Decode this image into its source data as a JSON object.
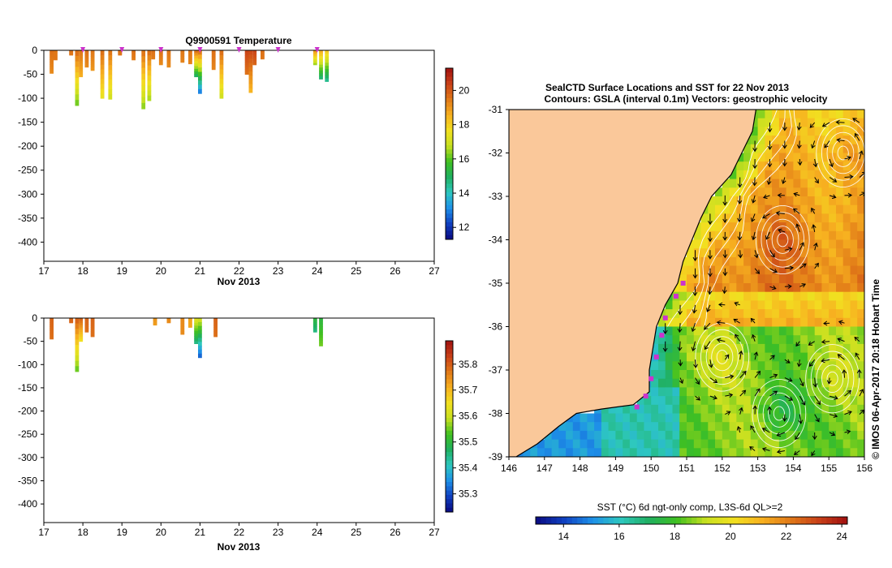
{
  "colors": {
    "land": "#fac89a",
    "vector": "#000000",
    "contour": "#ffffff",
    "station": "#cc33cc",
    "colormap": [
      "#0a0a80",
      "#1040c0",
      "#1e90e8",
      "#2ec8c0",
      "#20b060",
      "#40c020",
      "#c8e020",
      "#f2e020",
      "#f7b020",
      "#e07818",
      "#c84018",
      "#a01010"
    ]
  },
  "chart_data": [
    {
      "type": "heatmap",
      "title": "Q9900591  Temperature",
      "xlabel": "Nov 2013",
      "ylabel": "",
      "xlim": [
        17,
        27
      ],
      "ylim": [
        -440,
        0
      ],
      "xticks": [
        "17",
        "18",
        "19",
        "20",
        "21",
        "22",
        "23",
        "24",
        "25",
        "26",
        "27"
      ],
      "yticks": [
        "0",
        "-50",
        "-100",
        "-150",
        "-200",
        "-250",
        "-300",
        "-350",
        "-400"
      ],
      "colorbar": {
        "ticks": [
          "12",
          "14",
          "16",
          "18",
          "20"
        ],
        "range": [
          11.3,
          21.3
        ]
      },
      "station_markers_x": [
        18,
        19,
        20,
        21,
        22,
        23,
        24
      ],
      "profiles": [
        {
          "x": 17.2,
          "depth": 48,
          "surface": 19.6,
          "bottom": 19.2
        },
        {
          "x": 17.3,
          "depth": 20,
          "surface": 19.5,
          "bottom": 19.5
        },
        {
          "x": 17.7,
          "depth": 10,
          "surface": 19.6,
          "bottom": 19.5
        },
        {
          "x": 17.85,
          "depth": 115,
          "surface": 19.6,
          "bottom": 16.2
        },
        {
          "x": 17.95,
          "depth": 55,
          "surface": 19.5,
          "bottom": 18.6
        },
        {
          "x": 18.1,
          "depth": 35,
          "surface": 19.6,
          "bottom": 19.2
        },
        {
          "x": 18.25,
          "depth": 42,
          "surface": 19.5,
          "bottom": 19.0
        },
        {
          "x": 18.5,
          "depth": 100,
          "surface": 19.6,
          "bottom": 17.5
        },
        {
          "x": 18.7,
          "depth": 102,
          "surface": 19.5,
          "bottom": 17.0
        },
        {
          "x": 18.95,
          "depth": 10,
          "surface": 19.6,
          "bottom": 19.5
        },
        {
          "x": 19.3,
          "depth": 20,
          "surface": 19.6,
          "bottom": 19.4
        },
        {
          "x": 19.55,
          "depth": 122,
          "surface": 19.5,
          "bottom": 16.4
        },
        {
          "x": 19.7,
          "depth": 105,
          "surface": 19.6,
          "bottom": 16.6
        },
        {
          "x": 19.8,
          "depth": 18,
          "surface": 19.6,
          "bottom": 19.4
        },
        {
          "x": 20.0,
          "depth": 30,
          "surface": 19.6,
          "bottom": 19.2
        },
        {
          "x": 20.2,
          "depth": 35,
          "surface": 19.5,
          "bottom": 19.2
        },
        {
          "x": 20.55,
          "depth": 25,
          "surface": 19.5,
          "bottom": 19.3
        },
        {
          "x": 20.75,
          "depth": 28,
          "surface": 19.5,
          "bottom": 19.3
        },
        {
          "x": 20.9,
          "depth": 55,
          "surface": 19.5,
          "bottom": 15.0
        },
        {
          "x": 21.0,
          "depth": 90,
          "surface": 19.4,
          "bottom": 13.0
        },
        {
          "x": 21.35,
          "depth": 40,
          "surface": 19.6,
          "bottom": 19.3
        },
        {
          "x": 21.55,
          "depth": 100,
          "surface": 19.6,
          "bottom": 17.0
        },
        {
          "x": 22.2,
          "depth": 50,
          "surface": 20.3,
          "bottom": 19.6
        },
        {
          "x": 22.3,
          "depth": 88,
          "surface": 20.2,
          "bottom": 18.5
        },
        {
          "x": 22.4,
          "depth": 30,
          "surface": 20.3,
          "bottom": 19.8
        },
        {
          "x": 22.6,
          "depth": 18,
          "surface": 19.6,
          "bottom": 19.5
        },
        {
          "x": 23.95,
          "depth": 30,
          "surface": 19.0,
          "bottom": 16.5
        },
        {
          "x": 24.1,
          "depth": 60,
          "surface": 18.5,
          "bottom": 14.8
        },
        {
          "x": 24.25,
          "depth": 65,
          "surface": 18.0,
          "bottom": 14.5
        }
      ]
    },
    {
      "type": "heatmap",
      "title": "",
      "xlabel": "Nov 2013",
      "ylabel": "",
      "xlim": [
        17,
        27
      ],
      "ylim": [
        -440,
        0
      ],
      "xticks": [
        "17",
        "18",
        "19",
        "20",
        "21",
        "22",
        "23",
        "24",
        "25",
        "26",
        "27"
      ],
      "yticks": [
        "0",
        "-50",
        "-100",
        "-150",
        "-200",
        "-250",
        "-300",
        "-350",
        "-400"
      ],
      "colorbar": {
        "ticks": [
          "35.3",
          "35.4",
          "35.5",
          "35.6",
          "35.7",
          "35.8"
        ],
        "range": [
          35.23,
          35.89
        ]
      },
      "profiles": [
        {
          "x": 17.2,
          "depth": 45,
          "surface": 35.79,
          "bottom": 35.78
        },
        {
          "x": 17.7,
          "depth": 10,
          "surface": 35.79,
          "bottom": 35.79
        },
        {
          "x": 17.85,
          "depth": 115,
          "surface": 35.79,
          "bottom": 35.55
        },
        {
          "x": 17.95,
          "depth": 50,
          "surface": 35.79,
          "bottom": 35.65
        },
        {
          "x": 18.1,
          "depth": 30,
          "surface": 35.79,
          "bottom": 35.78
        },
        {
          "x": 18.25,
          "depth": 40,
          "surface": 35.79,
          "bottom": 35.78
        },
        {
          "x": 19.85,
          "depth": 15,
          "surface": 35.74,
          "bottom": 35.73
        },
        {
          "x": 20.2,
          "depth": 10,
          "surface": 35.75,
          "bottom": 35.75
        },
        {
          "x": 20.55,
          "depth": 35,
          "surface": 35.75,
          "bottom": 35.75
        },
        {
          "x": 20.75,
          "depth": 20,
          "surface": 35.72,
          "bottom": 35.72
        },
        {
          "x": 20.9,
          "depth": 55,
          "surface": 35.62,
          "bottom": 35.45
        },
        {
          "x": 21.0,
          "depth": 85,
          "surface": 35.6,
          "bottom": 35.32
        },
        {
          "x": 21.4,
          "depth": 40,
          "surface": 35.79,
          "bottom": 35.78
        },
        {
          "x": 23.95,
          "depth": 30,
          "surface": 35.5,
          "bottom": 35.45
        },
        {
          "x": 24.1,
          "depth": 60,
          "surface": 35.5,
          "bottom": 35.55
        }
      ]
    },
    {
      "type": "heatmap",
      "title": "SealCTD Surface Locations and SST for 22 Nov 2013",
      "subtitle": "Contours: GSLA (interval 0.1m) Vectors: geostrophic velocity",
      "xlabel": "",
      "ylabel": "",
      "xlim": [
        146,
        156
      ],
      "ylim": [
        -39,
        -31
      ],
      "xticks": [
        "146",
        "147",
        "148",
        "149",
        "150",
        "151",
        "152",
        "153",
        "154",
        "155",
        "156"
      ],
      "yticks": [
        "-31",
        "-32",
        "-33",
        "-34",
        "-35",
        "-36",
        "-37",
        "-38",
        "-39"
      ],
      "colorbar": {
        "label": "SST (°C) 6d ngt-only comp, L3S-6d QL>=2",
        "ticks": [
          "14",
          "16",
          "18",
          "20",
          "22",
          "24"
        ],
        "range": [
          13,
          24.2
        ]
      },
      "eddies": [
        {
          "lon": 153.7,
          "lat": -34.0,
          "kind": "warm-core"
        },
        {
          "lon": 152.0,
          "lat": -36.7,
          "kind": "warm-core"
        },
        {
          "lon": 155.1,
          "lat": -37.2,
          "kind": "warm-core"
        },
        {
          "lon": 153.6,
          "lat": -38.0,
          "kind": "cold-core"
        },
        {
          "lon": 155.4,
          "lat": -32.0,
          "kind": "warm-core"
        }
      ],
      "station_track": [
        {
          "lon": 150.9,
          "lat": -35.0
        },
        {
          "lon": 150.7,
          "lat": -35.3
        },
        {
          "lon": 150.4,
          "lat": -35.8
        },
        {
          "lon": 150.3,
          "lat": -36.2
        },
        {
          "lon": 150.15,
          "lat": -36.7
        },
        {
          "lon": 150.0,
          "lat": -37.2
        },
        {
          "lon": 149.85,
          "lat": -37.6
        },
        {
          "lon": 149.6,
          "lat": -37.85
        }
      ]
    }
  ],
  "credit": "© IMOS 06-Apr-2017 20:18 Hobart Time"
}
